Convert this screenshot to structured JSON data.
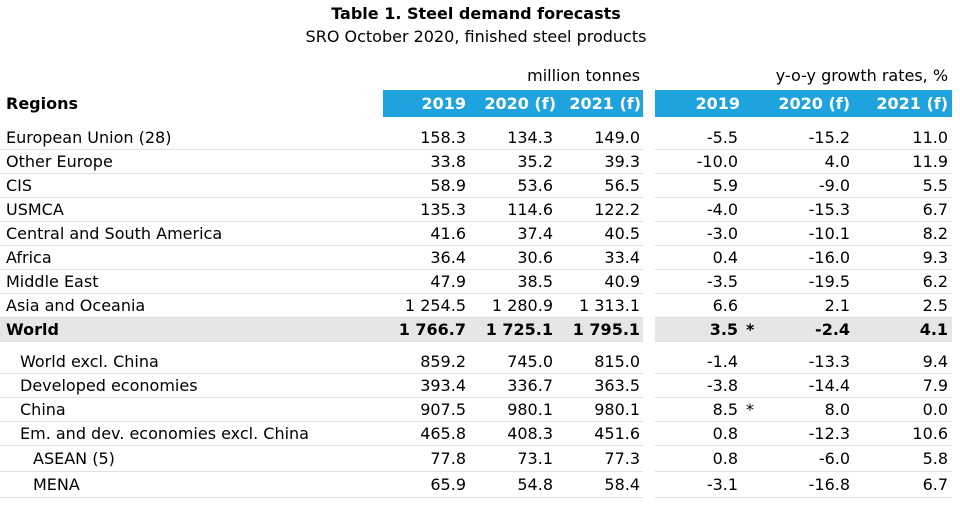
{
  "chart_data": {
    "type": "table",
    "title": "Table 1. Steel demand forecasts",
    "subtitle": "SRO October 2020, finished steel products",
    "row_header": "Regions",
    "column_groups": [
      {
        "label": "million tonnes",
        "columns": [
          "2019",
          "2020 (f)",
          "2021 (f)"
        ]
      },
      {
        "label": "y-o-y growth rates, %",
        "columns": [
          "2019",
          "2020 (f)",
          "2021 (f)"
        ]
      }
    ],
    "rows": [
      {
        "region": "European Union (28)",
        "million_tonnes": [
          "158.3",
          "134.3",
          "149.0"
        ],
        "growth_rates": [
          "-5.5",
          "-15.2",
          "11.0"
        ]
      },
      {
        "region": "Other Europe",
        "million_tonnes": [
          "33.8",
          "35.2",
          "39.3"
        ],
        "growth_rates": [
          "-10.0",
          "4.0",
          "11.9"
        ]
      },
      {
        "region": "CIS",
        "million_tonnes": [
          "58.9",
          "53.6",
          "56.5"
        ],
        "growth_rates": [
          "5.9",
          "-9.0",
          "5.5"
        ]
      },
      {
        "region": "USMCA",
        "million_tonnes": [
          "135.3",
          "114.6",
          "122.2"
        ],
        "growth_rates": [
          "-4.0",
          "-15.3",
          "6.7"
        ]
      },
      {
        "region": "Central and South America",
        "million_tonnes": [
          "41.6",
          "37.4",
          "40.5"
        ],
        "growth_rates": [
          "-3.0",
          "-10.1",
          "8.2"
        ]
      },
      {
        "region": "Africa",
        "million_tonnes": [
          "36.4",
          "30.6",
          "33.4"
        ],
        "growth_rates": [
          "0.4",
          "-16.0",
          "9.3"
        ]
      },
      {
        "region": "Middle East",
        "million_tonnes": [
          "47.9",
          "38.5",
          "40.9"
        ],
        "growth_rates": [
          "-3.5",
          "-19.5",
          "6.2"
        ]
      },
      {
        "region": "Asia and Oceania",
        "million_tonnes": [
          "1 254.5",
          "1 280.9",
          "1 313.1"
        ],
        "growth_rates": [
          "6.6",
          "2.1",
          "2.5"
        ]
      },
      {
        "region": "World",
        "total": true,
        "million_tonnes": [
          "1 766.7",
          "1 725.1",
          "1 795.1"
        ],
        "growth_rates": [
          "3.5",
          "-2.4",
          "4.1"
        ],
        "growth_2019_note": "*"
      }
    ],
    "memo_rows": [
      {
        "region": "World excl. China",
        "million_tonnes": [
          "859.2",
          "745.0",
          "815.0"
        ],
        "growth_rates": [
          "-1.4",
          "-13.3",
          "9.4"
        ]
      },
      {
        "region": "Developed economies",
        "million_tonnes": [
          "393.4",
          "336.7",
          "363.5"
        ],
        "growth_rates": [
          "-3.8",
          "-14.4",
          "7.9"
        ]
      },
      {
        "region": "China",
        "million_tonnes": [
          "907.5",
          "980.1",
          "980.1"
        ],
        "growth_rates": [
          "8.5",
          "8.0",
          "0.0"
        ],
        "growth_2019_note": "*"
      },
      {
        "region": "Em. and dev. economies excl. China",
        "million_tonnes": [
          "465.8",
          "408.3",
          "451.6"
        ],
        "growth_rates": [
          "0.8",
          "-12.3",
          "10.6"
        ],
        "children": [
          {
            "region": "ASEAN (5)",
            "million_tonnes": [
              "77.8",
              "73.1",
              "77.3"
            ],
            "growth_rates": [
              "0.8",
              "-6.0",
              "5.8"
            ]
          },
          {
            "region": "MENA",
            "million_tonnes": [
              "65.9",
              "54.8",
              "58.4"
            ],
            "growth_rates": [
              "-3.1",
              "-16.8",
              "6.7"
            ]
          }
        ]
      }
    ]
  },
  "colors": {
    "header_blue": "#1fa3de",
    "header_text": "#ffffff",
    "total_row_background": "#e6e6e6",
    "row_rule": "#e0e0e0",
    "text": "#000000"
  }
}
